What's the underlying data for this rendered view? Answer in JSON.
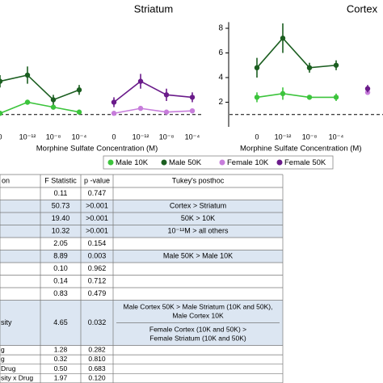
{
  "chart_data": [
    {
      "type": "line",
      "title": "Striatum",
      "x_label": "Morphine Sulfate Concentration (M)",
      "categories": [
        "0",
        "10⁻¹²",
        "10⁻⁸",
        "10⁻⁴",
        "0",
        "10⁻¹²",
        "10⁻⁸",
        "10⁻⁴"
      ],
      "ylim": [
        0,
        8.5
      ],
      "reference_line": 1,
      "series": [
        {
          "name": "Male 10K",
          "color": "#3cc43c",
          "values": [
            1.1,
            2.0,
            1.6,
            1.2,
            null,
            null,
            null,
            null
          ],
          "errors": [
            0.2,
            0.2,
            0.2,
            0.1,
            null,
            null,
            null,
            null
          ]
        },
        {
          "name": "Male 50K",
          "color": "#1b5e20",
          "values": [
            3.7,
            4.2,
            2.2,
            3.0,
            null,
            null,
            null,
            null
          ],
          "errors": [
            0.5,
            0.7,
            0.4,
            0.4,
            null,
            null,
            null,
            null
          ]
        },
        {
          "name": "Female 10K",
          "color": "#c77ddb",
          "values": [
            null,
            null,
            null,
            null,
            1.1,
            1.5,
            1.2,
            1.3
          ],
          "errors": [
            null,
            null,
            null,
            null,
            0.1,
            0.1,
            0.1,
            0.1
          ]
        },
        {
          "name": "Female 50K",
          "color": "#6a1b8a",
          "values": [
            null,
            null,
            null,
            null,
            2.0,
            3.7,
            2.6,
            2.4
          ],
          "errors": [
            null,
            null,
            null,
            null,
            0.4,
            0.6,
            0.5,
            0.4
          ]
        }
      ]
    },
    {
      "type": "line",
      "title": "Cortex",
      "x_label": "Morphine Sulfate Concentration (M)",
      "categories": [
        "0",
        "10⁻¹²",
        "10⁻⁸",
        "10⁻⁴",
        null
      ],
      "ylim": [
        0,
        8.5
      ],
      "yticks": [
        2,
        4,
        6,
        8
      ],
      "reference_line": 1,
      "series": [
        {
          "name": "Male 10K",
          "color": "#3cc43c",
          "values": [
            2.4,
            2.7,
            2.4,
            2.4,
            null
          ],
          "errors": [
            0.4,
            0.5,
            0.1,
            0.3,
            null
          ]
        },
        {
          "name": "Male 50K",
          "color": "#1b5e20",
          "values": [
            4.8,
            7.2,
            4.8,
            5.0,
            null
          ],
          "errors": [
            0.8,
            1.2,
            0.4,
            0.4,
            null
          ]
        },
        {
          "name": "Female 10K",
          "color": "#c77ddb",
          "values": [
            null,
            null,
            null,
            null,
            2.8
          ],
          "errors": [
            null,
            null,
            null,
            null,
            0.2
          ]
        },
        {
          "name": "Female 50K",
          "color": "#6a1b8a",
          "values": [
            null,
            null,
            null,
            null,
            3.1
          ],
          "errors": [
            null,
            null,
            null,
            null,
            0.3
          ]
        }
      ]
    }
  ],
  "table": {
    "header": [
      "on",
      "F Statistic",
      "p -value",
      "Tukey's posthoc"
    ],
    "rows": [
      {
        "cells": [
          null,
          "0.11",
          "0.747",
          null
        ],
        "highlight": false
      },
      {
        "cells": [
          null,
          "50.73",
          ">0.001",
          "Cortex > Striatum"
        ],
        "highlight": true
      },
      {
        "cells": [
          null,
          "19.40",
          ">0.001",
          "50K > 10K"
        ],
        "highlight": true
      },
      {
        "cells": [
          null,
          "10.32",
          ">0.001",
          "10⁻¹²M > all others"
        ],
        "highlight": true
      },
      {
        "cells": [
          null,
          "2.05",
          "0.154",
          null
        ],
        "highlight": false
      },
      {
        "cells": [
          null,
          "8.89",
          "0.003",
          "Male 50K > Male 10K"
        ],
        "highlight": true
      },
      {
        "cells": [
          null,
          "0.10",
          "0.962",
          null
        ],
        "highlight": false
      },
      {
        "cells": [
          null,
          "0.14",
          "0.712",
          null
        ],
        "highlight": false
      },
      {
        "cells": [
          null,
          "0.83",
          "0.479",
          null
        ],
        "highlight": false
      },
      {
        "cells": [
          "sity",
          "4.65",
          "0.032",
          [
            "Male Cortex 50K > Male Striatum (10K and 50K),",
            "Male Cortex 10K",
            "Female Cortex (10K and 50K) >",
            "Female Striatum (10K and 50K)"
          ]
        ],
        "highlight": true
      },
      {
        "cells": [
          "g",
          "1.28",
          "0.282",
          null
        ],
        "highlight": false
      },
      {
        "cells": [
          "g",
          "0.32",
          "0.810",
          null
        ],
        "highlight": false
      },
      {
        "cells": [
          "Drug",
          "0.50",
          "0.683",
          null
        ],
        "highlight": false
      },
      {
        "cells": [
          "sity x Drug",
          "1.97",
          "0.120",
          null
        ],
        "highlight": false
      }
    ]
  }
}
